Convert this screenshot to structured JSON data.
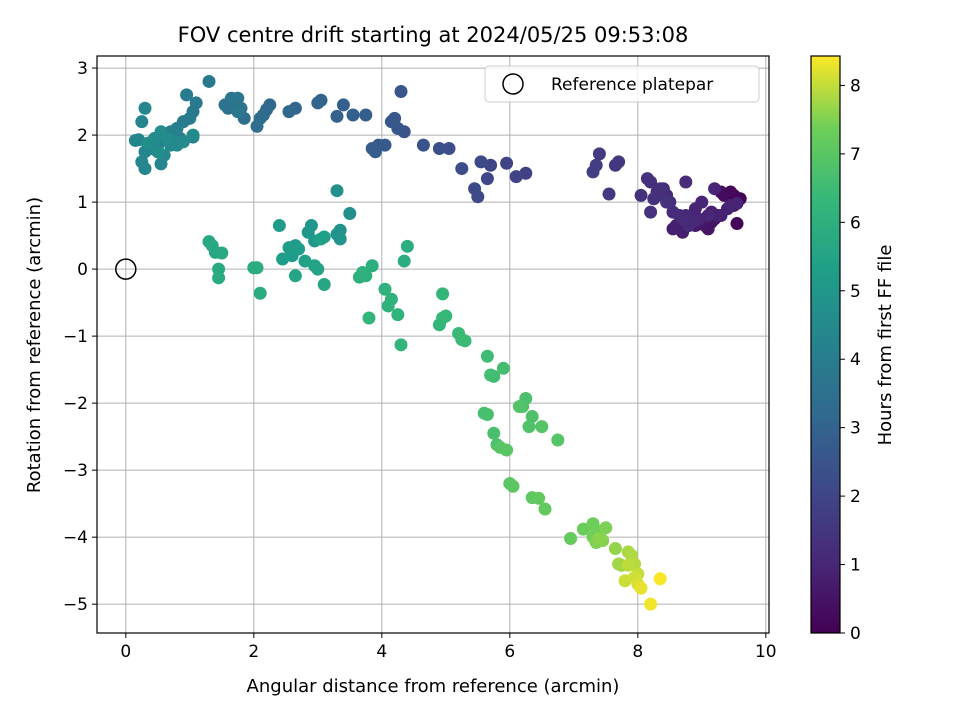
{
  "chart_data": {
    "type": "scatter",
    "title": "FOV centre drift starting at 2024/05/25 09:53:08",
    "xlabel": "Angular distance from reference (arcmin)",
    "ylabel": "Rotation from reference (arcmin)",
    "xlim": [
      -0.45,
      10.05
    ],
    "ylim": [
      -5.43,
      3.18
    ],
    "xticks": [
      0,
      2,
      4,
      6,
      8,
      10
    ],
    "yticks": [
      -5,
      -4,
      -3,
      -2,
      -1,
      0,
      1,
      2,
      3
    ],
    "grid": true,
    "legend": {
      "placement": "top-right",
      "label": "Reference platepar"
    },
    "reference_point": {
      "x": 0,
      "y": 0
    },
    "colorbar": {
      "label": "Hours from first FF file",
      "range": [
        0,
        8.43
      ],
      "ticks": [
        0,
        1,
        2,
        3,
        4,
        5,
        6,
        7,
        8
      ],
      "colormap": "viridis"
    },
    "series": [
      {
        "x": [
          9.55,
          9.6,
          9.5,
          9.45,
          9.35,
          9.3,
          9.5,
          9.2,
          9.15,
          9.1,
          9.05,
          9.0,
          8.95,
          8.9,
          8.85,
          8.8,
          8.75,
          8.7,
          8.65,
          8.6,
          8.55,
          9.4,
          9.25,
          9.15,
          9.3,
          9.45,
          9.55,
          9.2,
          9.0,
          8.9,
          9.1,
          8.95,
          8.85,
          8.75,
          8.65,
          8.8,
          8.7,
          8.55,
          8.45,
          8.75,
          8.5,
          8.4,
          8.3,
          8.2,
          8.35,
          8.3,
          8.15,
          8.05,
          8.25,
          8.45,
          8.2,
          7.65,
          7.7,
          7.55,
          7.4,
          7.35,
          7.3,
          6.25,
          6.1,
          5.95,
          5.7,
          5.65,
          5.55,
          5.45,
          5.5,
          5.25,
          5.05,
          4.9,
          4.65,
          4.35,
          4.3,
          4.25,
          4.15,
          4.2,
          4.05,
          3.95,
          3.85,
          3.9,
          3.75,
          3.55,
          3.4,
          3.3,
          3.05,
          3.0,
          2.65,
          2.55,
          2.25,
          2.2,
          2.15,
          2.1,
          2.05,
          1.85,
          1.6,
          1.55,
          1.7,
          1.75,
          1.8,
          1.65,
          1.75
        ],
        "y": [
          0.68,
          1.05,
          1.1,
          1.15,
          1.1,
          1.15,
          0.95,
          0.75,
          0.7,
          0.6,
          0.65,
          0.7,
          0.72,
          0.65,
          0.7,
          0.75,
          0.7,
          0.55,
          0.6,
          0.65,
          0.6,
          0.9,
          0.8,
          0.85,
          0.8,
          0.95,
          0.98,
          1.2,
          1.0,
          0.9,
          0.8,
          0.75,
          0.7,
          0.8,
          0.8,
          0.65,
          0.75,
          0.85,
          1.1,
          1.3,
          1.0,
          1.2,
          1.15,
          1.3,
          1.2,
          1.1,
          1.35,
          1.1,
          1.05,
          1.0,
          0.85,
          1.55,
          1.6,
          1.12,
          1.72,
          1.55,
          1.45,
          1.43,
          1.38,
          1.58,
          1.55,
          1.35,
          1.6,
          1.2,
          1.08,
          1.5,
          1.8,
          1.8,
          1.85,
          2.05,
          2.65,
          2.1,
          2.2,
          2.25,
          1.85,
          1.85,
          1.8,
          1.75,
          2.3,
          2.3,
          2.45,
          2.28,
          2.52,
          2.48,
          2.4,
          2.35,
          2.45,
          2.38,
          2.3,
          2.25,
          2.13,
          2.25,
          2.4,
          2.45,
          2.5,
          2.55,
          2.4,
          2.55,
          2.35
        ],
        "hours": [
          0.05,
          0.1,
          0.15,
          0.2,
          0.25,
          0.3,
          0.35,
          0.4,
          0.45,
          0.5,
          0.55,
          0.6,
          0.62,
          0.65,
          0.68,
          0.7,
          0.72,
          0.75,
          0.78,
          0.8,
          0.82,
          0.84,
          0.86,
          0.88,
          0.9,
          0.92,
          0.94,
          0.96,
          0.98,
          1.0,
          1.02,
          1.04,
          1.06,
          1.08,
          1.1,
          1.12,
          1.14,
          1.16,
          1.18,
          1.2,
          1.22,
          1.24,
          1.26,
          1.28,
          1.3,
          1.32,
          1.34,
          1.36,
          1.38,
          1.4,
          1.42,
          1.5,
          1.55,
          1.6,
          1.65,
          1.7,
          1.75,
          1.85,
          1.9,
          1.95,
          2.0,
          2.05,
          2.1,
          2.15,
          2.2,
          2.25,
          2.3,
          2.35,
          2.4,
          2.45,
          2.5,
          2.55,
          2.6,
          2.62,
          2.65,
          2.7,
          2.75,
          2.78,
          2.82,
          2.86,
          2.9,
          2.95,
          3.0,
          3.05,
          3.1,
          3.15,
          3.2,
          3.25,
          3.3,
          3.35,
          3.4,
          3.45,
          3.5,
          3.55,
          3.6,
          3.62,
          3.66,
          3.7,
          3.75
        ]
      },
      {
        "x": [
          1.3,
          1.1,
          1.05,
          0.95,
          1.0,
          0.9,
          1.05,
          0.85,
          0.8,
          0.75,
          0.7,
          0.65,
          0.7,
          0.6,
          0.55,
          0.5,
          0.45,
          0.4,
          0.35,
          0.3,
          0.25,
          0.2,
          0.15,
          0.3,
          0.25,
          0.3,
          0.55,
          0.6,
          0.7,
          0.75,
          0.8,
          0.9,
          1.05,
          0.45,
          0.55,
          0.65,
          0.35,
          0.5
        ],
        "y": [
          2.8,
          2.48,
          2.35,
          2.6,
          2.25,
          2.2,
          1.97,
          1.95,
          2.1,
          2.05,
          2.0,
          1.95,
          2.05,
          1.98,
          2.02,
          1.85,
          1.9,
          1.8,
          1.85,
          1.75,
          2.2,
          1.93,
          1.92,
          2.4,
          1.6,
          1.5,
          1.57,
          1.7,
          1.85,
          1.9,
          1.85,
          1.9,
          2.0,
          1.95,
          2.05,
          1.95,
          1.88,
          1.75
        ],
        "hours": [
          3.8,
          3.85,
          3.9,
          3.92,
          3.95,
          3.97,
          4.0,
          4.02,
          4.05,
          4.07,
          4.1,
          4.12,
          4.14,
          4.16,
          4.18,
          4.2,
          4.22,
          4.24,
          4.26,
          4.28,
          4.3,
          4.32,
          4.34,
          4.36,
          4.38,
          4.4,
          4.42,
          4.44,
          4.46,
          4.48,
          4.5,
          4.52,
          4.54,
          4.56,
          4.58,
          4.6,
          4.62,
          4.64
        ]
      },
      {
        "x": [
          3.5,
          3.3,
          3.35,
          3.3,
          3.35,
          2.9,
          2.85,
          2.95,
          2.65,
          2.4,
          2.6,
          2.55,
          2.7,
          2.45,
          3.1,
          3.05,
          2.8,
          2.95,
          3.0,
          2.65,
          3.1,
          1.3,
          1.35,
          1.4,
          1.5,
          1.45,
          1.45,
          2.0,
          2.05,
          2.1
        ],
        "y": [
          0.83,
          1.17,
          0.58,
          0.52,
          0.45,
          0.65,
          0.55,
          0.42,
          0.35,
          0.65,
          0.2,
          0.32,
          0.3,
          0.15,
          0.48,
          0.45,
          0.12,
          0.05,
          0.0,
          -0.1,
          -0.23,
          0.41,
          0.35,
          0.25,
          0.24,
          0.0,
          -0.13,
          0.02,
          0.02,
          -0.36
        ],
        "hours": [
          4.7,
          4.75,
          4.8,
          4.85,
          4.9,
          4.95,
          5.0,
          5.05,
          5.1,
          5.15,
          5.2,
          5.22,
          5.25,
          5.28,
          5.3,
          5.35,
          5.4,
          5.45,
          5.5,
          5.55,
          5.6,
          5.65,
          5.68,
          5.7,
          5.72,
          5.75,
          5.78,
          5.8,
          5.83,
          5.86
        ]
      },
      {
        "x": [
          4.4,
          4.35,
          3.85,
          3.75,
          3.65,
          3.7,
          4.05,
          4.15,
          4.1,
          4.25,
          4.3,
          3.8,
          4.95,
          4.9,
          4.95,
          5.0,
          5.2,
          5.25,
          5.3,
          5.65,
          5.75,
          5.7,
          5.9,
          5.6,
          5.65
        ],
        "y": [
          0.34,
          0.12,
          0.05,
          -0.1,
          -0.12,
          -0.05,
          -0.3,
          -0.45,
          -0.55,
          -0.68,
          -1.13,
          -0.73,
          -0.37,
          -0.83,
          -0.73,
          -0.7,
          -0.96,
          -1.05,
          -1.07,
          -1.3,
          -1.6,
          -1.58,
          -1.48,
          -2.15,
          -2.17
        ],
        "hours": [
          5.9,
          5.92,
          5.95,
          5.98,
          6.0,
          6.03,
          6.06,
          6.09,
          6.12,
          6.15,
          6.18,
          6.2,
          6.25,
          6.28,
          6.3,
          6.35,
          6.4,
          6.43,
          6.46,
          6.5,
          6.55,
          6.58,
          6.62,
          6.65,
          6.68
        ]
      },
      {
        "x": [
          5.75,
          5.8,
          6.25,
          6.2,
          6.35,
          6.3,
          6.15,
          6.5,
          6.75,
          5.85,
          5.95,
          6.0,
          6.05,
          6.35,
          6.45,
          6.55,
          6.95
        ],
        "y": [
          -2.45,
          -2.62,
          -1.93,
          -2.05,
          -2.2,
          -2.35,
          -2.05,
          -2.35,
          -2.55,
          -2.66,
          -2.7,
          -3.2,
          -3.24,
          -3.41,
          -3.42,
          -3.58,
          -4.02
        ],
        "hours": [
          6.7,
          6.72,
          6.75,
          6.78,
          6.8,
          6.83,
          6.86,
          6.9,
          6.92,
          6.95,
          6.98,
          7.02,
          7.05,
          7.1,
          7.13,
          7.16,
          7.2
        ]
      },
      {
        "x": [
          7.15,
          7.3,
          7.35,
          7.3,
          7.4,
          7.45,
          7.5,
          7.35,
          7.45,
          7.4,
          7.65,
          7.75,
          7.7,
          7.85,
          7.9,
          7.95,
          7.85,
          8.0,
          7.8,
          7.95,
          8.0,
          8.05,
          8.2,
          8.35
        ],
        "y": [
          -3.88,
          -3.8,
          -3.9,
          -4.0,
          -3.95,
          -4.05,
          -3.86,
          -4.08,
          -4.05,
          -4.02,
          -4.17,
          -4.42,
          -4.4,
          -4.22,
          -4.27,
          -4.4,
          -4.42,
          -4.55,
          -4.65,
          -4.6,
          -4.7,
          -4.76,
          -5.0,
          -4.62
        ],
        "hours": [
          7.3,
          7.35,
          7.38,
          7.4,
          7.42,
          7.45,
          7.48,
          7.5,
          7.55,
          7.58,
          7.65,
          7.7,
          7.75,
          7.8,
          7.85,
          7.9,
          7.95,
          8.0,
          8.05,
          8.1,
          8.15,
          8.25,
          8.35,
          8.4
        ]
      }
    ]
  }
}
